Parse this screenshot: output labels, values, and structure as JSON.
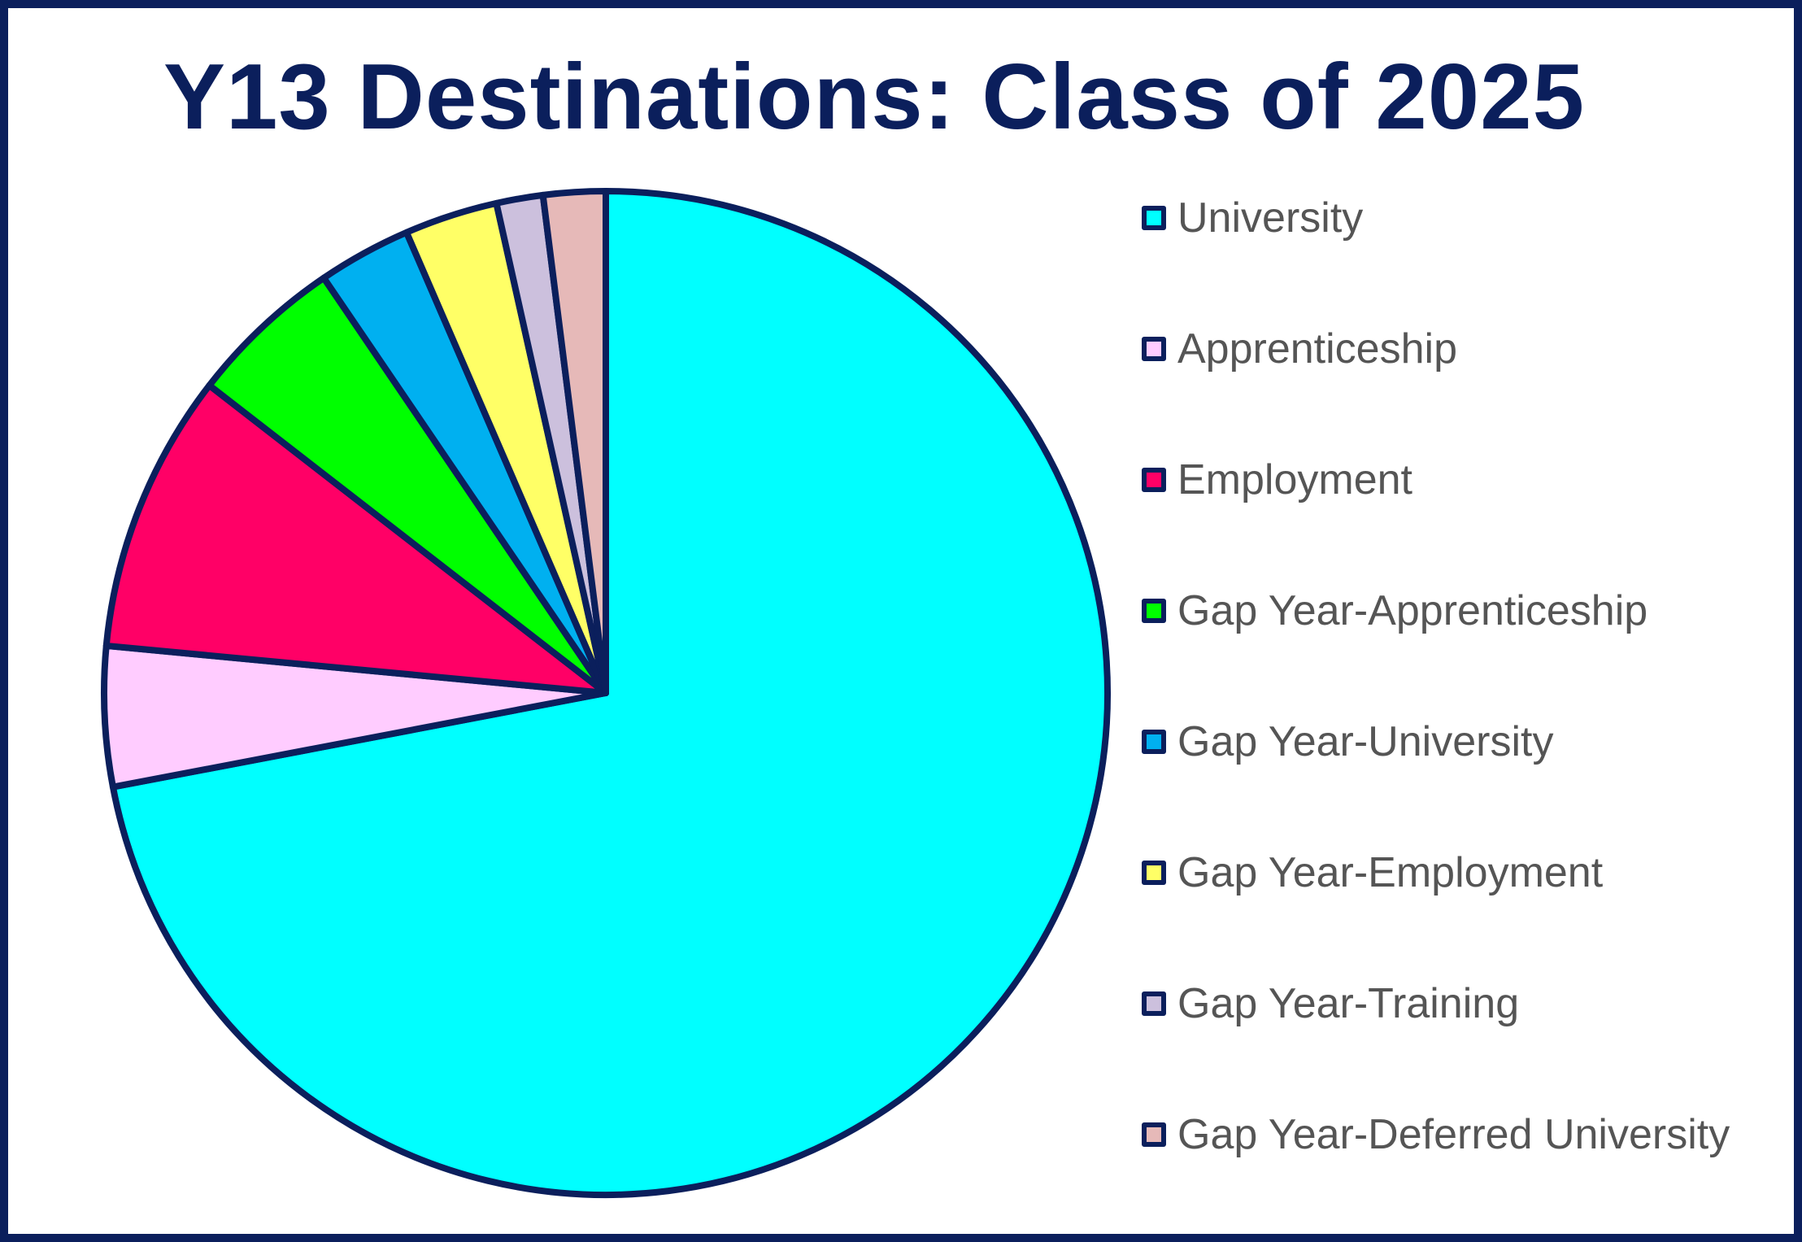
{
  "chart_data": {
    "type": "pie",
    "title": "Y13 Destinations: Class of 2025",
    "legend_position": "right",
    "slices": [
      {
        "label": "University",
        "value": 72.0,
        "color": "#00ffff"
      },
      {
        "label": "Apprenticeship",
        "value": 4.5,
        "color": "#ffccff"
      },
      {
        "label": "Employment",
        "value": 9.0,
        "color": "#ff0066"
      },
      {
        "label": "Gap Year-Apprenticeship",
        "value": 5.0,
        "color": "#00ff00"
      },
      {
        "label": "Gap Year-University",
        "value": 3.0,
        "color": "#00b0f0"
      },
      {
        "label": "Gap Year-Employment",
        "value": 3.0,
        "color": "#ffff66"
      },
      {
        "label": "Gap Year-Training",
        "value": 1.5,
        "color": "#ccc0dd"
      },
      {
        "label": "Gap Year-Deferred University",
        "value": 2.0,
        "color": "#e6b9b8"
      }
    ],
    "outline_color": "#0b1f5c"
  }
}
